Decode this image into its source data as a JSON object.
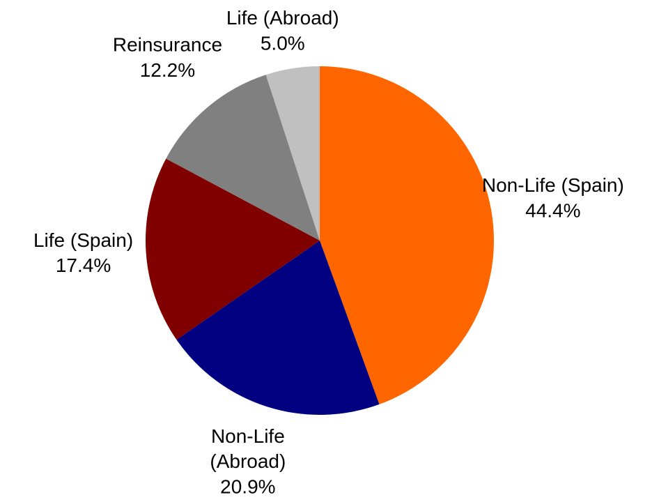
{
  "chart_data": {
    "type": "pie",
    "categories": [
      "Non-Life (Spain)",
      "Non-Life (Abroad)",
      "Life (Spain)",
      "Reinsurance",
      "Life (Abroad)"
    ],
    "values": [
      44.4,
      20.9,
      17.4,
      12.2,
      5.0
    ],
    "value_labels": [
      "44.4%",
      "20.9%",
      "17.4%",
      "12.2%",
      "5.0%"
    ],
    "colors": [
      "#ff6600",
      "#000080",
      "#800000",
      "#808080",
      "#c0c0c0"
    ]
  }
}
